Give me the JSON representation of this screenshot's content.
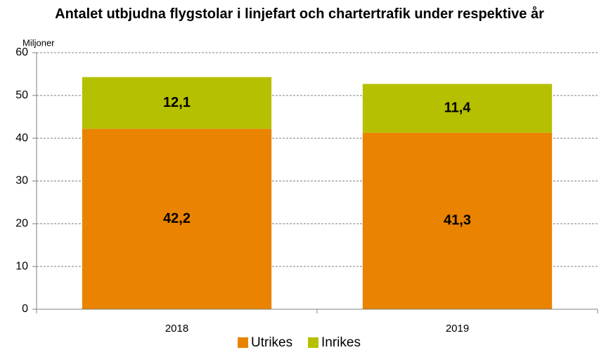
{
  "chart_data": {
    "type": "stacked_bar",
    "title": "Antalet utbjudna flygstolar i linjefart och chartertrafik under respektive år",
    "ylabel": "Miljoner",
    "categories": [
      "2018",
      "2019"
    ],
    "series": [
      {
        "name": "Utrikes",
        "color": "#e98300",
        "values": [
          42.2,
          41.3
        ],
        "value_labels": [
          "42,2",
          "41,3"
        ]
      },
      {
        "name": "Inrikes",
        "color": "#b5c000",
        "values": [
          12.1,
          11.4
        ],
        "value_labels": [
          "12,1",
          "11,4"
        ]
      }
    ],
    "ylim": [
      0,
      60
    ],
    "yticks": [
      0,
      10,
      20,
      30,
      40,
      50,
      60
    ],
    "grid": true,
    "legend": "bottom"
  }
}
